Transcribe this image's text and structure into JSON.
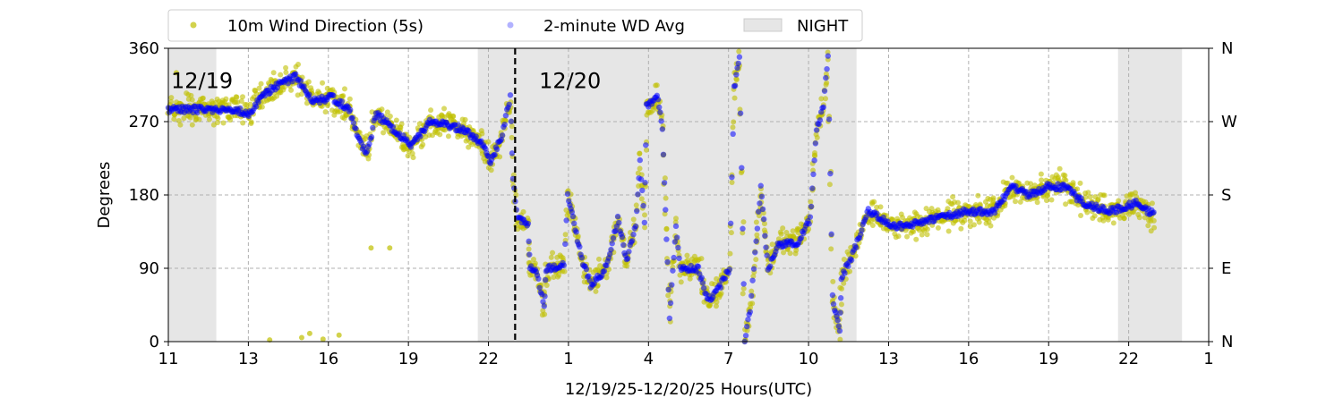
{
  "chart_data": {
    "type": "scatter",
    "title": "",
    "xlabel": "12/19/25-12/20/25  Hours(UTC)",
    "ylabel": "Degrees",
    "xlim": [
      0,
      39
    ],
    "ylim": [
      0,
      360
    ],
    "x_units": "hours since axis start",
    "x_ticks": [
      0,
      3,
      6,
      9,
      12,
      15,
      18,
      21,
      24,
      27,
      30,
      33,
      36,
      39
    ],
    "x_tick_labels": [
      "11",
      "13",
      "16",
      "19",
      "22",
      "1",
      "4",
      "7",
      "10",
      "13",
      "16",
      "19",
      "22",
      "1"
    ],
    "y_ticks": [
      0,
      90,
      180,
      270,
      360
    ],
    "y_tick_labels": [
      "0",
      "90",
      "180",
      "270",
      "360"
    ],
    "y2_tick_labels": [
      "N",
      "E",
      "S",
      "W",
      "N"
    ],
    "grid": true,
    "legend": {
      "placement": "top-center-outside",
      "entries": [
        {
          "label": "10m Wind Direction (5s)",
          "color": "#bfbf00",
          "kind": "point"
        },
        {
          "label": "2-minute WD Avg",
          "color": "#0000ff",
          "kind": "point"
        },
        {
          "label": "NIGHT",
          "color": "#e6e6e6",
          "kind": "patch"
        }
      ]
    },
    "night_spans": [
      [
        0,
        1.8
      ],
      [
        11.6,
        25.8
      ],
      [
        35.6,
        38.0
      ]
    ],
    "day_divider": 13.0,
    "annotations": [
      {
        "text": "12/19",
        "x": 0.1,
        "y": 320
      },
      {
        "text": "12/20",
        "x": 13.9,
        "y": 320
      }
    ],
    "series": [
      {
        "name": "2-minute WD Avg",
        "color": "#0000ff",
        "points": [
          [
            0,
            285
          ],
          [
            2.42,
            285
          ],
          [
            3.09,
            280
          ],
          [
            3.42,
            300
          ],
          [
            4.09,
            315
          ],
          [
            4.77,
            325
          ],
          [
            5.44,
            295
          ],
          [
            6.11,
            300
          ],
          [
            6.78,
            285
          ],
          [
            7.11,
            250
          ],
          [
            7.45,
            230
          ],
          [
            7.79,
            280
          ],
          [
            8.46,
            260
          ],
          [
            9.13,
            240
          ],
          [
            9.8,
            270
          ],
          [
            10.47,
            265
          ],
          [
            11.14,
            260
          ],
          [
            11.81,
            240
          ],
          [
            12.08,
            220
          ],
          [
            12.48,
            250
          ],
          [
            12.82,
            300
          ],
          [
            12.92,
            200
          ],
          [
            13.09,
            150
          ],
          [
            13.49,
            145
          ],
          [
            13.56,
            90
          ],
          [
            13.83,
            85
          ],
          [
            14.09,
            40
          ],
          [
            14.16,
            90
          ],
          [
            14.5,
            90
          ],
          [
            14.83,
            95
          ],
          [
            14.97,
            180
          ],
          [
            15.17,
            150
          ],
          [
            15.5,
            100
          ],
          [
            15.84,
            70
          ],
          [
            16.17,
            80
          ],
          [
            16.51,
            100
          ],
          [
            16.85,
            150
          ],
          [
            17.18,
            100
          ],
          [
            17.52,
            140
          ],
          [
            17.68,
            220
          ],
          [
            17.85,
            150
          ],
          [
            17.92,
            290
          ],
          [
            18.36,
            300
          ],
          [
            18.52,
            260
          ],
          [
            18.79,
            30
          ],
          [
            19.03,
            140
          ],
          [
            19.19,
            90
          ],
          [
            19.87,
            90
          ],
          [
            20.2,
            50
          ],
          [
            20.54,
            60
          ],
          [
            21.04,
            90
          ],
          [
            21.21,
            310
          ],
          [
            21.41,
            350
          ],
          [
            21.61,
            0
          ],
          [
            21.81,
            40
          ],
          [
            21.95,
            90
          ],
          [
            22.21,
            190
          ],
          [
            22.48,
            90
          ],
          [
            22.89,
            120
          ],
          [
            23.56,
            120
          ],
          [
            24.06,
            150
          ],
          [
            24.3,
            260
          ],
          [
            24.56,
            290
          ],
          [
            24.73,
            350
          ],
          [
            24.9,
            55
          ],
          [
            25.17,
            10
          ],
          [
            25.23,
            80
          ],
          [
            25.57,
            100
          ],
          [
            25.91,
            130
          ],
          [
            26.24,
            160
          ],
          [
            27.25,
            140
          ],
          [
            28.59,
            150
          ],
          [
            29.93,
            160
          ],
          [
            30.94,
            160
          ],
          [
            31.61,
            190
          ],
          [
            32.28,
            180
          ],
          [
            32.95,
            190
          ],
          [
            33.62,
            190
          ],
          [
            34.3,
            170
          ],
          [
            35.3,
            160
          ],
          [
            36.31,
            170
          ],
          [
            36.98,
            155
          ]
        ]
      },
      {
        "name": "10m Wind Direction (5s)",
        "color": "#bfbf00",
        "spread_deg": 18,
        "follows": "2-minute WD Avg",
        "outliers": [
          [
            3.8,
            2
          ],
          [
            5.0,
            5
          ],
          [
            5.3,
            10
          ],
          [
            5.8,
            3
          ],
          [
            6.4,
            8
          ],
          [
            7.6,
            115
          ],
          [
            8.3,
            115
          ],
          [
            0.3,
            330
          ]
        ]
      }
    ]
  }
}
